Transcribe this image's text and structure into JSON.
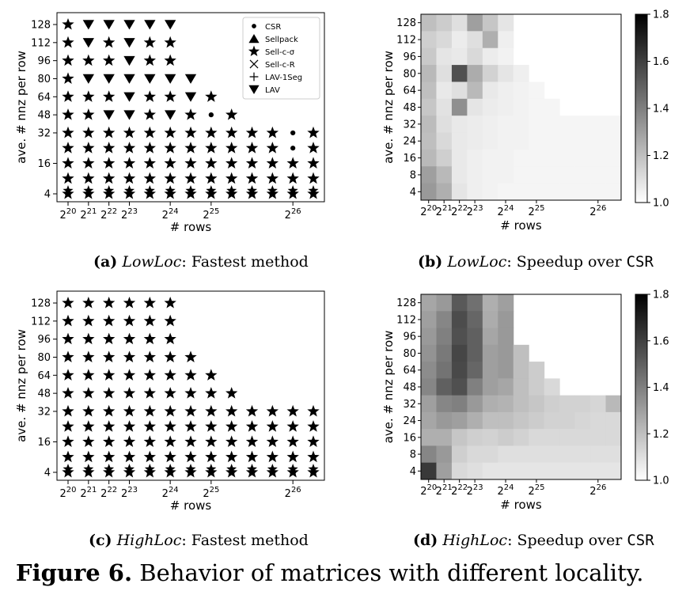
{
  "figure_caption": {
    "number": "Figure 6.",
    "text": " Behavior of matrices with different locality."
  },
  "subcaptions": [
    {
      "tag": "(a)",
      "name": "LowLoc",
      "rest": ": Fastest method"
    },
    {
      "tag": "(b)",
      "name": "LowLoc",
      "rest": ": Speedup over ",
      "mono": "CSR"
    },
    {
      "tag": "(c)",
      "name": "HighLoc",
      "rest": ": Fastest method"
    },
    {
      "tag": "(d)",
      "name": "HighLoc",
      "rest": ": Speedup over ",
      "mono": "CSR"
    }
  ],
  "chart_data": [
    {
      "id": "a",
      "type": "scatter",
      "xlabel": "# rows",
      "ylabel": "ave. # nnz per row",
      "x_ticks": [
        {
          "exp": "20",
          "pos": 0
        },
        {
          "exp": "21",
          "pos": 1
        },
        {
          "exp": "22",
          "pos": 2
        },
        {
          "exp": "23",
          "pos": 3
        },
        {
          "exp": "24",
          "pos": 5
        },
        {
          "exp": "25",
          "pos": 7
        },
        {
          "exp": "26",
          "pos": 11
        }
      ],
      "x_base": "2",
      "y_ticks": [
        4,
        16,
        32,
        48,
        64,
        80,
        96,
        112,
        128
      ],
      "legend": [
        {
          "label": "CSR",
          "marker": "circle"
        },
        {
          "label": "Sellpack",
          "marker": "triangle-up"
        },
        {
          "label": "Sell-c-σ",
          "marker": "star"
        },
        {
          "label": "Sell-c-R",
          "marker": "x"
        },
        {
          "label": "LAV-1Seg",
          "marker": "plus"
        },
        {
          "label": "LAV",
          "marker": "triangle-down"
        }
      ],
      "legend_position": "top-right",
      "rows": [
        {
          "y": 128,
          "markers": [
            "star",
            "tri-down",
            "tri-down",
            "tri-down",
            "tri-down",
            "tri-down"
          ]
        },
        {
          "y": 112,
          "markers": [
            "star",
            "tri-down",
            "star",
            "tri-down",
            "star",
            "star"
          ]
        },
        {
          "y": 96,
          "markers": [
            "star",
            "star",
            "star",
            "tri-down",
            "star",
            "star"
          ]
        },
        {
          "y": 80,
          "markers": [
            "star",
            "tri-down",
            "tri-down",
            "tri-down",
            "tri-down",
            "tri-down",
            "tri-down"
          ]
        },
        {
          "y": 64,
          "markers": [
            "star",
            "star",
            "star",
            "tri-down",
            "star",
            "star",
            "tri-down",
            "star"
          ]
        },
        {
          "y": 48,
          "markers": [
            "star",
            "star",
            "tri-down",
            "tri-down",
            "star",
            "tri-down",
            "star",
            "circle",
            "star"
          ]
        },
        {
          "y": 32,
          "markers": [
            "star",
            "star",
            "star",
            "star",
            "star",
            "star",
            "star",
            "star",
            "star",
            "star",
            "star",
            "circle",
            "star"
          ]
        },
        {
          "y": 24,
          "markers": [
            "star",
            "star",
            "star",
            "star",
            "star",
            "star",
            "star",
            "star",
            "star",
            "star",
            "star",
            "circle",
            "star"
          ]
        },
        {
          "y": 16,
          "markers": [
            "star",
            "star",
            "star",
            "star",
            "star",
            "star",
            "star",
            "star",
            "star",
            "star",
            "star",
            "star",
            "star"
          ]
        },
        {
          "y": 8,
          "markers": [
            "star",
            "star",
            "star",
            "star",
            "star",
            "star",
            "star",
            "star",
            "star",
            "star",
            "star",
            "star",
            "star"
          ]
        },
        {
          "y": 4,
          "markers": [
            "star",
            "star",
            "star",
            "star",
            "star",
            "star",
            "star",
            "star",
            "star",
            "star",
            "star",
            "star",
            "star"
          ]
        }
      ],
      "low_rows_stack": [
        "star",
        "star"
      ]
    },
    {
      "id": "b",
      "type": "heatmap",
      "xlabel": "# rows",
      "ylabel": "ave. # nnz per row",
      "x_ticks": [
        {
          "exp": "20",
          "pos": 0
        },
        {
          "exp": "21",
          "pos": 1
        },
        {
          "exp": "22",
          "pos": 2
        },
        {
          "exp": "23",
          "pos": 3
        },
        {
          "exp": "24",
          "pos": 5
        },
        {
          "exp": "25",
          "pos": 7
        },
        {
          "exp": "26",
          "pos": 11
        }
      ],
      "x_base": "2",
      "y_labels": [
        "128",
        "112",
        "96",
        "80",
        "64",
        "48",
        "32",
        "24",
        "16",
        "8",
        "4"
      ],
      "colorbar": {
        "min": 1.0,
        "max": 1.8,
        "ticks": [
          "1.0",
          "1.2",
          "1.4",
          "1.6",
          "1.8"
        ]
      },
      "values": [
        [
          1.2,
          1.16,
          1.1,
          1.3,
          1.18,
          1.08
        ],
        [
          1.15,
          1.12,
          1.06,
          1.1,
          1.25,
          1.05
        ],
        [
          1.17,
          1.08,
          1.07,
          1.12,
          1.06,
          1.04
        ],
        [
          1.22,
          1.1,
          1.55,
          1.26,
          1.14,
          1.08,
          1.05
        ],
        [
          1.2,
          1.07,
          1.1,
          1.22,
          1.07,
          1.05,
          1.04,
          1.03
        ],
        [
          1.18,
          1.09,
          1.35,
          1.08,
          1.06,
          1.05,
          1.04,
          1.03,
          1.03
        ],
        [
          1.21,
          1.1,
          1.07,
          1.06,
          1.05,
          1.04,
          1.04,
          1.03,
          1.03,
          1.03,
          1.03,
          1.03,
          1.03
        ],
        [
          1.2,
          1.12,
          1.07,
          1.06,
          1.05,
          1.04,
          1.04,
          1.03,
          1.03,
          1.03,
          1.03,
          1.03,
          1.03
        ],
        [
          1.22,
          1.15,
          1.07,
          1.05,
          1.04,
          1.04,
          1.03,
          1.03,
          1.03,
          1.03,
          1.03,
          1.03,
          1.03
        ],
        [
          1.3,
          1.22,
          1.07,
          1.05,
          1.04,
          1.04,
          1.03,
          1.03,
          1.03,
          1.03,
          1.03,
          1.03,
          1.03
        ],
        [
          1.32,
          1.25,
          1.08,
          1.05,
          1.04,
          1.03,
          1.03,
          1.03,
          1.03,
          1.03,
          1.03,
          1.03,
          1.03
        ]
      ]
    },
    {
      "id": "c",
      "type": "scatter",
      "xlabel": "# rows",
      "ylabel": "ave. # nnz per row",
      "x_ticks": [
        {
          "exp": "20",
          "pos": 0
        },
        {
          "exp": "21",
          "pos": 1
        },
        {
          "exp": "22",
          "pos": 2
        },
        {
          "exp": "23",
          "pos": 3
        },
        {
          "exp": "24",
          "pos": 5
        },
        {
          "exp": "25",
          "pos": 7
        },
        {
          "exp": "26",
          "pos": 11
        }
      ],
      "x_base": "2",
      "y_ticks": [
        4,
        16,
        32,
        48,
        64,
        80,
        96,
        112,
        128
      ],
      "rows": [
        {
          "y": 128,
          "markers": [
            "star",
            "star",
            "star",
            "star",
            "star",
            "star"
          ]
        },
        {
          "y": 112,
          "markers": [
            "star",
            "star",
            "star",
            "star",
            "star",
            "star"
          ]
        },
        {
          "y": 96,
          "markers": [
            "star",
            "star",
            "star",
            "star",
            "star",
            "star"
          ]
        },
        {
          "y": 80,
          "markers": [
            "star",
            "star",
            "star",
            "star",
            "star",
            "star",
            "star"
          ]
        },
        {
          "y": 64,
          "markers": [
            "star",
            "star",
            "star",
            "star",
            "star",
            "star",
            "star",
            "star"
          ]
        },
        {
          "y": 48,
          "markers": [
            "star",
            "star",
            "star",
            "star",
            "star",
            "star",
            "star",
            "star",
            "star"
          ]
        },
        {
          "y": 32,
          "markers": [
            "star",
            "star",
            "star",
            "star",
            "star",
            "star",
            "star",
            "star",
            "star",
            "star",
            "star",
            "star",
            "star"
          ]
        },
        {
          "y": 24,
          "markers": [
            "star",
            "star",
            "star",
            "star",
            "star",
            "star",
            "star",
            "star",
            "star",
            "star",
            "star",
            "star",
            "star"
          ]
        },
        {
          "y": 16,
          "markers": [
            "star",
            "star",
            "star",
            "star",
            "star",
            "star",
            "star",
            "star",
            "star",
            "star",
            "star",
            "star",
            "star"
          ]
        },
        {
          "y": 8,
          "markers": [
            "star",
            "star",
            "star",
            "star",
            "star",
            "star",
            "star",
            "star",
            "star",
            "star",
            "star",
            "star",
            "star"
          ]
        },
        {
          "y": 4,
          "markers": [
            "star",
            "star",
            "star",
            "star",
            "star",
            "star",
            "star",
            "star",
            "star",
            "star",
            "star",
            "star",
            "star"
          ]
        }
      ],
      "low_rows_stack": [
        "star",
        "star"
      ]
    },
    {
      "id": "d",
      "type": "heatmap",
      "xlabel": "# rows",
      "ylabel": "ave. # nnz per row",
      "x_ticks": [
        {
          "exp": "20",
          "pos": 0
        },
        {
          "exp": "21",
          "pos": 1
        },
        {
          "exp": "22",
          "pos": 2
        },
        {
          "exp": "23",
          "pos": 3
        },
        {
          "exp": "24",
          "pos": 5
        },
        {
          "exp": "25",
          "pos": 7
        },
        {
          "exp": "26",
          "pos": 11
        }
      ],
      "x_base": "2",
      "y_labels": [
        "128",
        "112",
        "96",
        "80",
        "64",
        "48",
        "32",
        "24",
        "16",
        "8",
        "4"
      ],
      "colorbar": {
        "min": 1.0,
        "max": 1.8,
        "ticks": [
          "1.0",
          "1.2",
          "1.4",
          "1.6",
          "1.8"
        ]
      },
      "values": [
        [
          1.28,
          1.32,
          1.52,
          1.45,
          1.25,
          1.3
        ],
        [
          1.3,
          1.38,
          1.56,
          1.48,
          1.26,
          1.32
        ],
        [
          1.32,
          1.4,
          1.55,
          1.5,
          1.28,
          1.32
        ],
        [
          1.34,
          1.42,
          1.58,
          1.5,
          1.3,
          1.32,
          1.2
        ],
        [
          1.36,
          1.44,
          1.57,
          1.48,
          1.3,
          1.32,
          1.2,
          1.16
        ],
        [
          1.38,
          1.5,
          1.55,
          1.4,
          1.3,
          1.28,
          1.2,
          1.16,
          1.12
        ],
        [
          1.3,
          1.38,
          1.4,
          1.32,
          1.25,
          1.24,
          1.2,
          1.18,
          1.15,
          1.14,
          1.14,
          1.13,
          1.22
        ],
        [
          1.28,
          1.32,
          1.3,
          1.25,
          1.2,
          1.2,
          1.18,
          1.16,
          1.14,
          1.14,
          1.13,
          1.12,
          1.12
        ],
        [
          1.25,
          1.25,
          1.18,
          1.15,
          1.14,
          1.16,
          1.14,
          1.12,
          1.12,
          1.12,
          1.12,
          1.12,
          1.12
        ],
        [
          1.38,
          1.32,
          1.15,
          1.12,
          1.12,
          1.1,
          1.1,
          1.1,
          1.1,
          1.1,
          1.1,
          1.1,
          1.1
        ],
        [
          1.62,
          1.3,
          1.12,
          1.1,
          1.08,
          1.08,
          1.08,
          1.08,
          1.08,
          1.08,
          1.08,
          1.08,
          1.08
        ]
      ]
    }
  ]
}
